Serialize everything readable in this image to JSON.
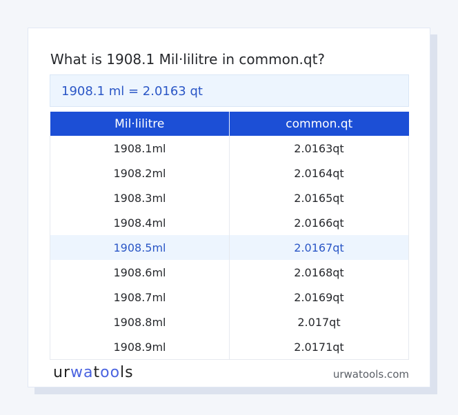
{
  "title": "What is 1908.1 Mil·lilitre in common.qt?",
  "result": "1908.1 ml = 2.0163 qt",
  "table": {
    "headers": [
      "Mil·lilitre",
      "common.qt"
    ],
    "rows": [
      [
        "1908.1ml",
        "2.0163qt"
      ],
      [
        "1908.2ml",
        "2.0164qt"
      ],
      [
        "1908.3ml",
        "2.0165qt"
      ],
      [
        "1908.4ml",
        "2.0166qt"
      ],
      [
        "1908.5ml",
        "2.0167qt"
      ],
      [
        "1908.6ml",
        "2.0168qt"
      ],
      [
        "1908.7ml",
        "2.0169qt"
      ],
      [
        "1908.8ml",
        "2.017qt"
      ],
      [
        "1908.9ml",
        "2.0171qt"
      ]
    ],
    "highlighted_row": 4
  },
  "footer": {
    "logo_text": "urwatools",
    "site": "urwatools.com"
  },
  "colors": {
    "accent": "#1c4fd6",
    "highlight_bg": "#edf5fe",
    "highlight_text": "#2a56c6"
  }
}
